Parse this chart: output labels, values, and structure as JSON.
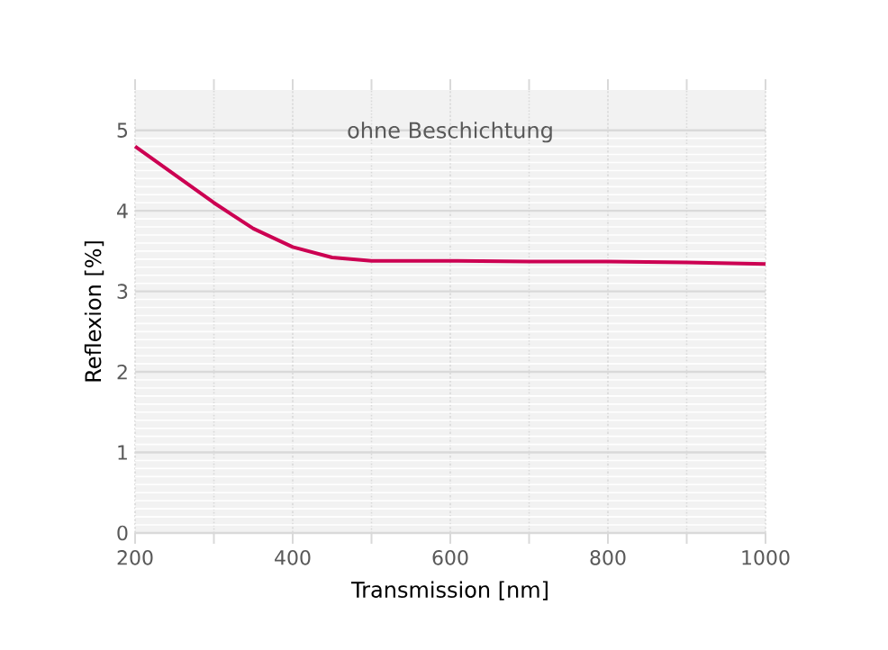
{
  "chart_data": {
    "type": "line",
    "xlabel": "Transmission [nm]",
    "ylabel": "Reflexion [%]",
    "annotations": [
      "ohne Beschichtung"
    ],
    "series": [
      {
        "color": "#cc0052",
        "x": [
          200,
          250,
          300,
          350,
          400,
          450,
          500,
          600,
          700,
          800,
          900,
          1000
        ],
        "values": [
          4.8,
          4.45,
          4.1,
          3.78,
          3.55,
          3.42,
          3.38,
          3.38,
          3.37,
          3.37,
          3.36,
          3.34
        ]
      }
    ],
    "xlim": [
      200,
      1000
    ],
    "ylim": [
      0,
      5.5
    ],
    "xticks": [
      200,
      400,
      600,
      800,
      1000
    ],
    "yticks": [
      0,
      1,
      2,
      3,
      4,
      5
    ],
    "grid": true,
    "line_style": "solid",
    "marker": "none"
  }
}
